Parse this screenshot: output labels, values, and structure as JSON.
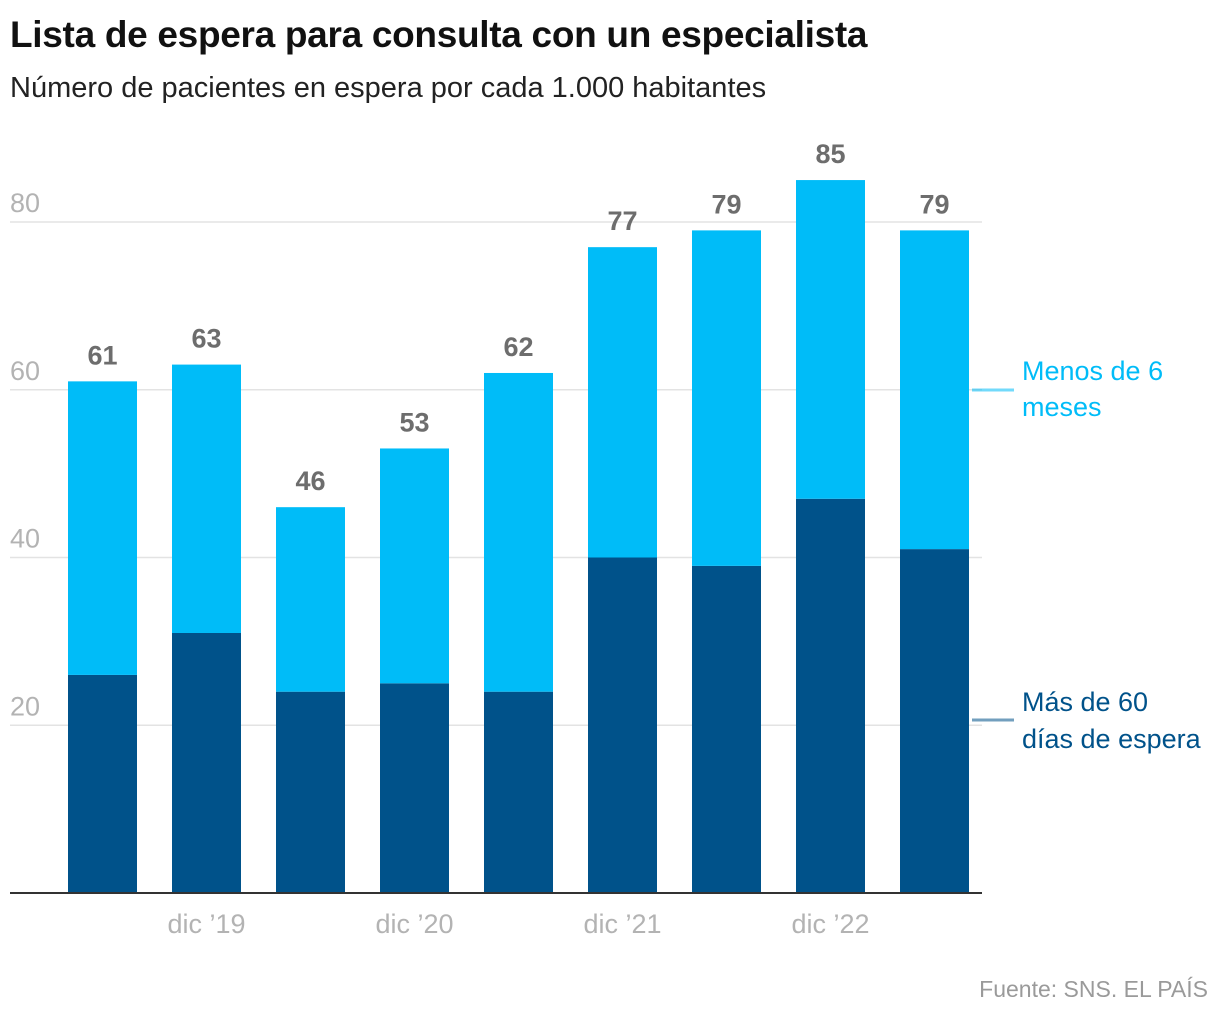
{
  "chart_data": {
    "type": "bar",
    "stacked": true,
    "title": "Lista de espera para consulta con un especialista",
    "subtitle": "Número de pacientes en espera por cada 1.000 habitantes",
    "categories": [
      "",
      "dic ’19",
      "",
      "dic ’20",
      "",
      "dic ’21",
      "",
      "dic ’22",
      ""
    ],
    "totals": [
      61,
      63,
      46,
      53,
      62,
      77,
      79,
      85,
      79
    ],
    "series": [
      {
        "name": "Más de 60 días de espera",
        "legend_lines": [
          "Más de 60",
          "días de espera"
        ],
        "color": "#00528a",
        "values": [
          26,
          31,
          24,
          25,
          24,
          40,
          39,
          47,
          41
        ]
      },
      {
        "name": "Menos de 6 meses",
        "legend_lines": [
          "Menos de 6",
          "meses"
        ],
        "color": "#00bcf8",
        "values": [
          35,
          32,
          22,
          28,
          38,
          37,
          40,
          38,
          38
        ]
      }
    ],
    "yticks": [
      20,
      40,
      60,
      80
    ],
    "ylim": [
      0,
      92
    ],
    "grid": true,
    "legend_placement": "right"
  },
  "source": {
    "label": "Fuente: SNS",
    "separator": ". ",
    "brand": "EL PAÍS"
  },
  "colors": {
    "tick_label": "#b3b3b3",
    "total_label": "#6d6d6d",
    "grid": "#e3e3e3",
    "axis": "#333333"
  }
}
